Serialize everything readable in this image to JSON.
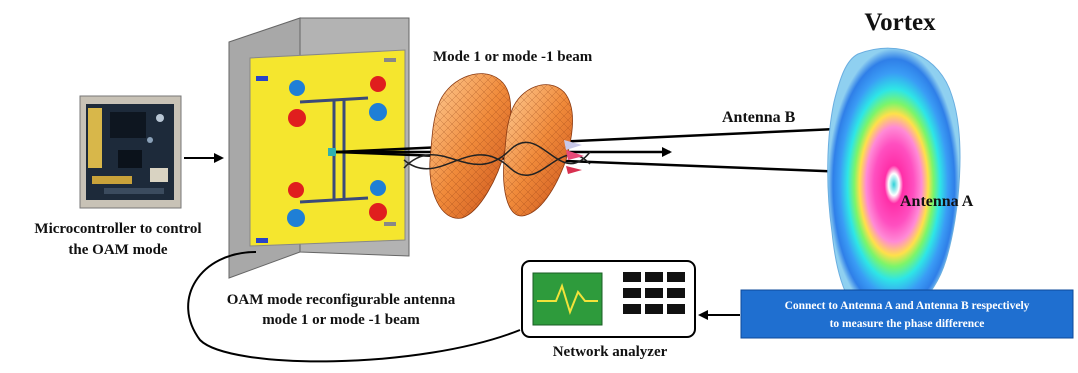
{
  "labels": {
    "vortex": "Vortex",
    "beam": "Mode 1 or mode -1 beam",
    "antenna_b": "Antenna B",
    "antenna_a": "Antenna A",
    "microcontroller_line1": "Microcontroller to control",
    "microcontroller_line2": "the OAM mode",
    "oam_antenna_line1": "OAM mode reconfigurable antenna",
    "oam_antenna_line2": "mode 1 or mode -1 beam",
    "network_analyzer": "Network analyzer"
  },
  "info_box": {
    "line1": "Connect to Antenna A and Antenna B respectively",
    "line2": "to measure the phase difference"
  },
  "colors": {
    "info_box_fill": "#1f6fd0",
    "antenna_patch": "#f5e62e",
    "antenna_plate": "#a8a8a8",
    "analyzer_screen": "#2e9b3c",
    "analyzer_trace": "#f2e23a"
  }
}
